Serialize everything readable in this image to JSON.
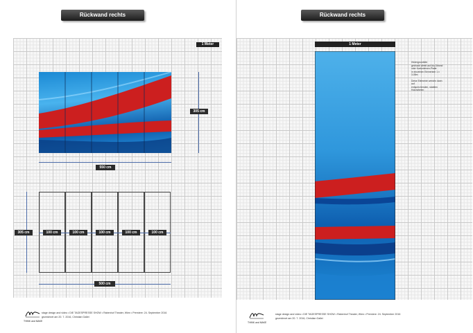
{
  "left": {
    "title": "Rückwand rechts",
    "scale_label": "1 Meter",
    "width_label": "550 cm",
    "height_label": "305 cm",
    "panels_height_label": "305 cm",
    "panel_labels": [
      "100 cm",
      "100 cm",
      "100 cm",
      "100 cm",
      "100 cm"
    ],
    "panels_width_label": "500 cm",
    "footer_line1": "stage design and video • DIE TAGESPRESSE SHOW • Rabenhof Theater, Wien • Premiere: 24. September 2016",
    "footer_line2": "gezeichnet am 20. 7. 2016, Christian Gallei",
    "logo_caption": "THINK and MAKE"
  },
  "right": {
    "title": "Rückwand rechts",
    "scale_label": "1 Meter",
    "note_lines": [
      "Hintergrundbild",
      "gedruckt direkt auf Alu-Dibond",
      "oder Kartonleinen-Platte",
      "in einzelnen Elementen 1 x 3,05m",
      "",
      "Diese Elemente werden dann auf",
      "entsprechenden, stabilen",
      "Holzrahmen"
    ],
    "footer_line1": "stage design and video • DIE TAGESPRESSE SHOW • Rabenhof Theater, Wien • Premiere: 24. September 2016",
    "footer_line2": "gezeichnet am 20. 7. 2016, Christian Gallei",
    "logo_caption": "THINK and MAKE"
  },
  "colors": {
    "accent_red": "#cc1f1f",
    "accent_blue": "#1b89d4",
    "dim_line": "#4a6aa8"
  }
}
